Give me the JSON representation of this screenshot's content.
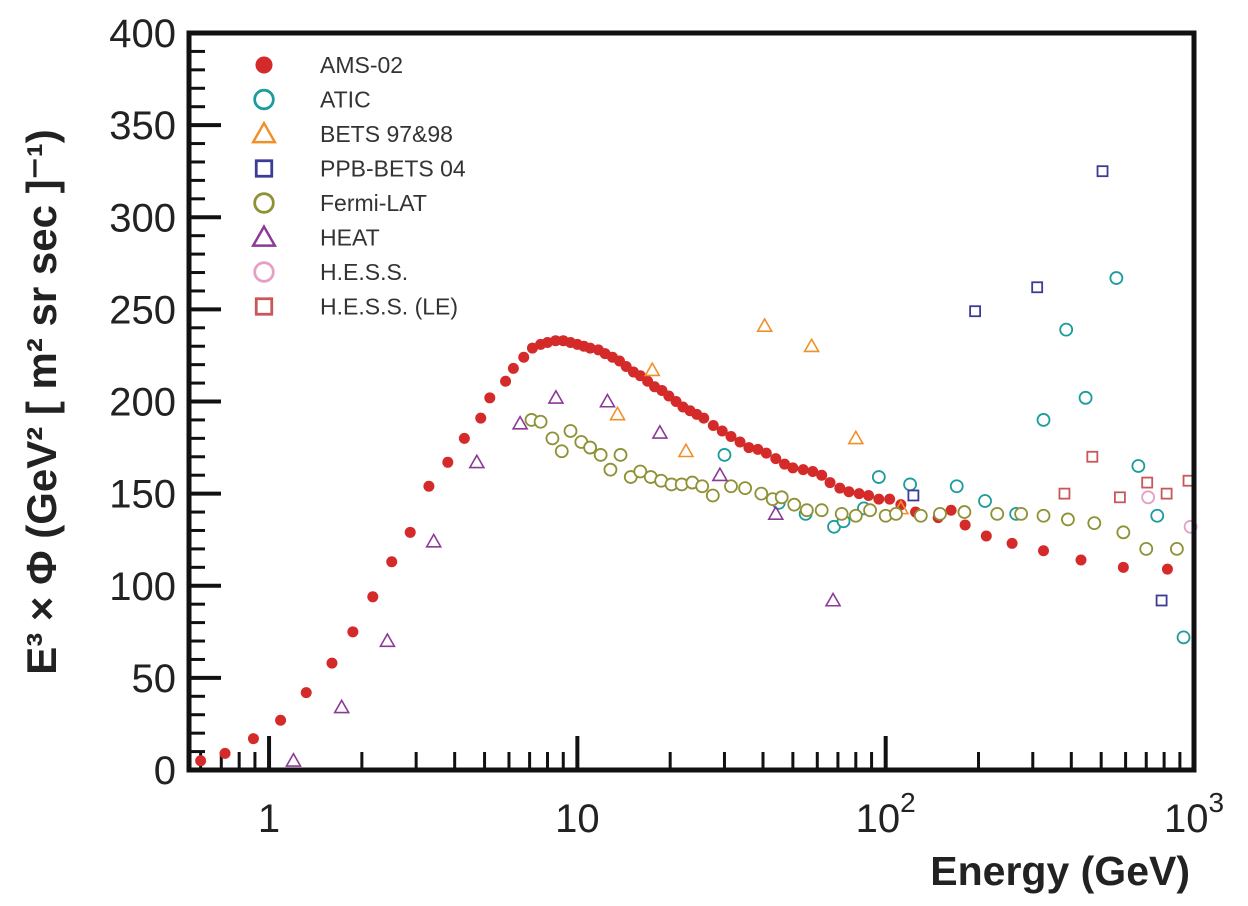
{
  "chart_data": {
    "type": "scatter",
    "title": "",
    "xlabel": "Energy (GeV)",
    "ylabel": "E³ × Φ (GeV² [ m² sr sec ]⁻¹)",
    "x_scale": "log",
    "xlim": [
      0.55,
      1000
    ],
    "ylim": [
      0,
      400
    ],
    "x_ticks": [
      {
        "value": 1,
        "label": "1"
      },
      {
        "value": 10,
        "label": "10"
      },
      {
        "value": 100,
        "label": "10",
        "exp": "2"
      },
      {
        "value": 1000,
        "label": "10",
        "exp": "3"
      }
    ],
    "y_ticks": [
      0,
      50,
      100,
      150,
      200,
      250,
      300,
      350,
      400
    ],
    "legend_position": "top-left",
    "series": [
      {
        "name": "AMS-02",
        "marker": "filled-circle",
        "color": "#d42a2a",
        "points": [
          {
            "x": 0.6,
            "y": 5
          },
          {
            "x": 0.72,
            "y": 9
          },
          {
            "x": 0.89,
            "y": 17
          },
          {
            "x": 1.09,
            "y": 27
          },
          {
            "x": 1.32,
            "y": 42
          },
          {
            "x": 1.6,
            "y": 58
          },
          {
            "x": 1.87,
            "y": 75
          },
          {
            "x": 2.17,
            "y": 94
          },
          {
            "x": 2.5,
            "y": 113
          },
          {
            "x": 2.87,
            "y": 129
          },
          {
            "x": 3.3,
            "y": 154
          },
          {
            "x": 3.8,
            "y": 167
          },
          {
            "x": 4.3,
            "y": 180
          },
          {
            "x": 4.86,
            "y": 191
          },
          {
            "x": 5.2,
            "y": 202
          },
          {
            "x": 5.85,
            "y": 211
          },
          {
            "x": 6.2,
            "y": 218
          },
          {
            "x": 6.7,
            "y": 224
          },
          {
            "x": 7.15,
            "y": 229
          },
          {
            "x": 7.6,
            "y": 231
          },
          {
            "x": 8.0,
            "y": 232
          },
          {
            "x": 8.5,
            "y": 233
          },
          {
            "x": 9.0,
            "y": 233
          },
          {
            "x": 9.5,
            "y": 232
          },
          {
            "x": 10.0,
            "y": 231
          },
          {
            "x": 10.5,
            "y": 230
          },
          {
            "x": 11.0,
            "y": 229
          },
          {
            "x": 11.7,
            "y": 228
          },
          {
            "x": 12.3,
            "y": 226
          },
          {
            "x": 13.0,
            "y": 224
          },
          {
            "x": 13.7,
            "y": 222
          },
          {
            "x": 14.4,
            "y": 219
          },
          {
            "x": 15.2,
            "y": 216
          },
          {
            "x": 16.0,
            "y": 214
          },
          {
            "x": 16.9,
            "y": 211
          },
          {
            "x": 17.8,
            "y": 208
          },
          {
            "x": 18.8,
            "y": 206
          },
          {
            "x": 19.8,
            "y": 203
          },
          {
            "x": 20.9,
            "y": 200
          },
          {
            "x": 22.0,
            "y": 197
          },
          {
            "x": 23.2,
            "y": 195
          },
          {
            "x": 24.4,
            "y": 193
          },
          {
            "x": 25.7,
            "y": 191
          },
          {
            "x": 27.6,
            "y": 187
          },
          {
            "x": 29.5,
            "y": 184
          },
          {
            "x": 31.5,
            "y": 181
          },
          {
            "x": 33.7,
            "y": 178
          },
          {
            "x": 36.0,
            "y": 175
          },
          {
            "x": 38.5,
            "y": 174
          },
          {
            "x": 41.0,
            "y": 172
          },
          {
            "x": 44.0,
            "y": 169
          },
          {
            "x": 47.0,
            "y": 166
          },
          {
            "x": 50.0,
            "y": 164
          },
          {
            "x": 54.0,
            "y": 163
          },
          {
            "x": 58.0,
            "y": 162
          },
          {
            "x": 62.0,
            "y": 160
          },
          {
            "x": 66.0,
            "y": 156
          },
          {
            "x": 71.0,
            "y": 153
          },
          {
            "x": 76.0,
            "y": 151
          },
          {
            "x": 82.0,
            "y": 150
          },
          {
            "x": 88.0,
            "y": 149
          },
          {
            "x": 95.0,
            "y": 147
          },
          {
            "x": 103.0,
            "y": 147
          },
          {
            "x": 112.0,
            "y": 144
          },
          {
            "x": 125.0,
            "y": 140
          },
          {
            "x": 148.0,
            "y": 137
          },
          {
            "x": 163.0,
            "y": 141
          },
          {
            "x": 181.0,
            "y": 133
          },
          {
            "x": 212.0,
            "y": 127
          },
          {
            "x": 257.0,
            "y": 123
          },
          {
            "x": 325.0,
            "y": 119
          },
          {
            "x": 430.0,
            "y": 114
          },
          {
            "x": 590.0,
            "y": 110
          },
          {
            "x": 820.0,
            "y": 109
          }
        ]
      },
      {
        "name": "ATIC",
        "marker": "open-circle",
        "color": "#1d9c9c",
        "points": [
          {
            "x": 30,
            "y": 171
          },
          {
            "x": 45,
            "y": 145
          },
          {
            "x": 55,
            "y": 139
          },
          {
            "x": 68,
            "y": 132
          },
          {
            "x": 73,
            "y": 135
          },
          {
            "x": 85,
            "y": 142
          },
          {
            "x": 95,
            "y": 159
          },
          {
            "x": 120,
            "y": 155
          },
          {
            "x": 170,
            "y": 154
          },
          {
            "x": 210,
            "y": 146
          },
          {
            "x": 265,
            "y": 139
          },
          {
            "x": 325,
            "y": 190
          },
          {
            "x": 385,
            "y": 239
          },
          {
            "x": 445,
            "y": 202
          },
          {
            "x": 560,
            "y": 267
          },
          {
            "x": 660,
            "y": 165
          },
          {
            "x": 760,
            "y": 138
          },
          {
            "x": 925,
            "y": 72
          }
        ]
      },
      {
        "name": "BETS 97&98",
        "marker": "open-triangle",
        "color": "#f0902a",
        "points": [
          {
            "x": 13.5,
            "y": 193
          },
          {
            "x": 17.5,
            "y": 217
          },
          {
            "x": 22.5,
            "y": 173
          },
          {
            "x": 40.5,
            "y": 241
          },
          {
            "x": 57.5,
            "y": 230
          },
          {
            "x": 80,
            "y": 180
          },
          {
            "x": 112,
            "y": 142
          }
        ]
      },
      {
        "name": "PPB-BETS 04",
        "marker": "open-square",
        "color": "#3a3c96",
        "points": [
          {
            "x": 123,
            "y": 149
          },
          {
            "x": 195,
            "y": 249
          },
          {
            "x": 310,
            "y": 262
          },
          {
            "x": 505,
            "y": 325
          },
          {
            "x": 785,
            "y": 92
          }
        ]
      },
      {
        "name": "Fermi-LAT",
        "marker": "open-circle",
        "color": "#8f9134",
        "points": [
          {
            "x": 7.1,
            "y": 190
          },
          {
            "x": 7.6,
            "y": 189
          },
          {
            "x": 8.3,
            "y": 180
          },
          {
            "x": 8.9,
            "y": 173
          },
          {
            "x": 9.5,
            "y": 184
          },
          {
            "x": 10.3,
            "y": 178
          },
          {
            "x": 11.0,
            "y": 175
          },
          {
            "x": 11.9,
            "y": 171
          },
          {
            "x": 12.8,
            "y": 163
          },
          {
            "x": 13.8,
            "y": 171
          },
          {
            "x": 14.9,
            "y": 159
          },
          {
            "x": 16.0,
            "y": 162
          },
          {
            "x": 17.3,
            "y": 159
          },
          {
            "x": 18.7,
            "y": 157
          },
          {
            "x": 20.2,
            "y": 155
          },
          {
            "x": 21.8,
            "y": 155
          },
          {
            "x": 23.6,
            "y": 156
          },
          {
            "x": 25.4,
            "y": 154
          },
          {
            "x": 27.5,
            "y": 149
          },
          {
            "x": 31.5,
            "y": 154
          },
          {
            "x": 35.0,
            "y": 153
          },
          {
            "x": 39.5,
            "y": 150
          },
          {
            "x": 43.0,
            "y": 147
          },
          {
            "x": 46.0,
            "y": 148
          },
          {
            "x": 50.5,
            "y": 144
          },
          {
            "x": 55.5,
            "y": 141
          },
          {
            "x": 62.0,
            "y": 141
          },
          {
            "x": 72.0,
            "y": 139
          },
          {
            "x": 80.0,
            "y": 138
          },
          {
            "x": 89.0,
            "y": 141
          },
          {
            "x": 100.0,
            "y": 138
          },
          {
            "x": 108.0,
            "y": 139
          },
          {
            "x": 130.0,
            "y": 138
          },
          {
            "x": 150.0,
            "y": 139
          },
          {
            "x": 180.0,
            "y": 140
          },
          {
            "x": 230.0,
            "y": 139
          },
          {
            "x": 275.0,
            "y": 139
          },
          {
            "x": 325.0,
            "y": 138
          },
          {
            "x": 390.0,
            "y": 136
          },
          {
            "x": 475.0,
            "y": 134
          },
          {
            "x": 590.0,
            "y": 129
          },
          {
            "x": 700.0,
            "y": 120
          },
          {
            "x": 880.0,
            "y": 120
          }
        ]
      },
      {
        "name": "HEAT",
        "marker": "open-triangle",
        "color": "#8c3a96",
        "points": [
          {
            "x": 1.2,
            "y": 5
          },
          {
            "x": 1.72,
            "y": 34
          },
          {
            "x": 2.42,
            "y": 70
          },
          {
            "x": 3.42,
            "y": 124
          },
          {
            "x": 4.72,
            "y": 167
          },
          {
            "x": 6.52,
            "y": 188
          },
          {
            "x": 8.52,
            "y": 202
          },
          {
            "x": 12.52,
            "y": 200
          },
          {
            "x": 18.52,
            "y": 183
          },
          {
            "x": 29.0,
            "y": 160
          },
          {
            "x": 44.0,
            "y": 139
          },
          {
            "x": 67.5,
            "y": 92
          }
        ]
      },
      {
        "name": "H.E.S.S.",
        "marker": "open-circle",
        "color": "#e6a0c8",
        "points": [
          {
            "x": 710,
            "y": 148
          },
          {
            "x": 975,
            "y": 132
          }
        ]
      },
      {
        "name": "H.E.S.S. (LE)",
        "marker": "open-square",
        "color": "#c85858",
        "points": [
          {
            "x": 380,
            "y": 150
          },
          {
            "x": 468,
            "y": 170
          },
          {
            "x": 575,
            "y": 148
          },
          {
            "x": 705,
            "y": 156
          },
          {
            "x": 815,
            "y": 150
          },
          {
            "x": 960,
            "y": 157
          }
        ]
      }
    ]
  }
}
